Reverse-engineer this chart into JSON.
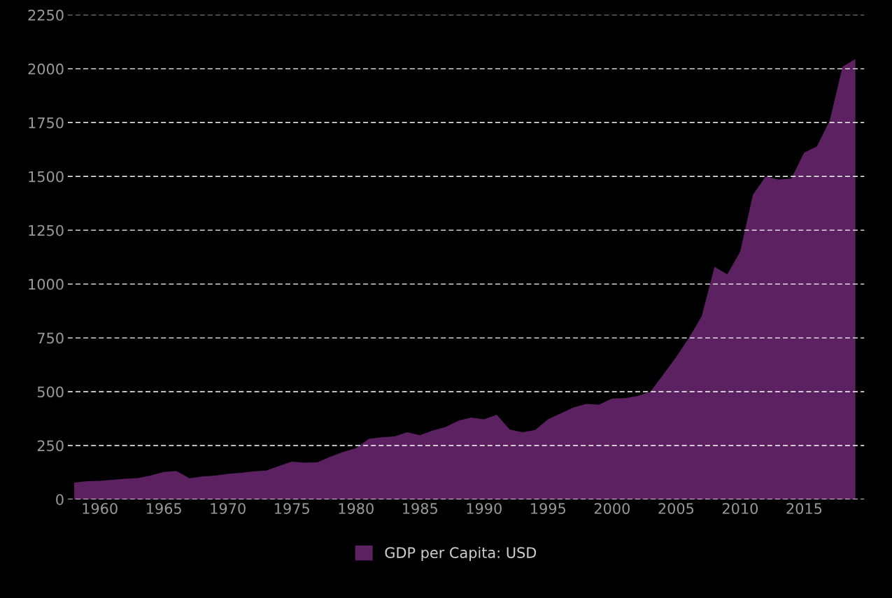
{
  "chart_data": {
    "type": "area",
    "x": [
      1958,
      1959,
      1960,
      1961,
      1962,
      1963,
      1964,
      1965,
      1966,
      1967,
      1968,
      1969,
      1970,
      1971,
      1972,
      1973,
      1974,
      1975,
      1976,
      1977,
      1978,
      1979,
      1980,
      1981,
      1982,
      1983,
      1984,
      1985,
      1986,
      1987,
      1988,
      1989,
      1990,
      1991,
      1992,
      1993,
      1994,
      1995,
      1996,
      1997,
      1998,
      1999,
      2000,
      2001,
      2002,
      2003,
      2004,
      2005,
      2006,
      2007,
      2008,
      2009,
      2010,
      2011,
      2012,
      2013,
      2014,
      2015,
      2016,
      2017,
      2018,
      2019
    ],
    "series": [
      {
        "name": "GDP per Capita: USD",
        "color": "#5b2161",
        "values": [
          78,
          84,
          86,
          91,
          96,
          99,
          111,
          127,
          131,
          98,
          106,
          110,
          118,
          123,
          130,
          134,
          155,
          175,
          170,
          172,
          198,
          220,
          238,
          281,
          288,
          292,
          312,
          298,
          320,
          336,
          365,
          380,
          372,
          393,
          325,
          312,
          322,
          372,
          399,
          427,
          443,
          440,
          468,
          470,
          480,
          500,
          580,
          660,
          750,
          850,
          1080,
          1045,
          1150,
          1415,
          1500,
          1485,
          1490,
          1610,
          1640,
          1760,
          2010,
          2045
        ]
      }
    ],
    "xlim": [
      1957.5,
      2019.7
    ],
    "xticks": [
      1960,
      1965,
      1970,
      1975,
      1980,
      1985,
      1990,
      1995,
      2000,
      2005,
      2010,
      2015
    ],
    "ylim": [
      0,
      2250
    ],
    "yticks": [
      0,
      250,
      500,
      750,
      1000,
      1250,
      1500,
      1750,
      2000,
      2250
    ],
    "grid": "y",
    "legend": "bottom"
  }
}
